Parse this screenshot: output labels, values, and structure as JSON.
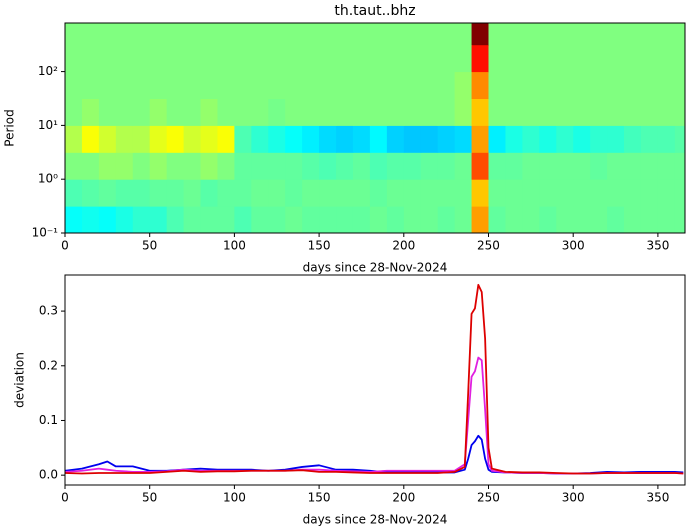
{
  "chart_data": [
    {
      "type": "heatmap",
      "title": "th.taut..bhz",
      "xlabel": "days since 28-Nov-2024",
      "ylabel": "Period",
      "yscale": "log",
      "colormap": "jet",
      "xlim": [
        0,
        366
      ],
      "xticks": [
        0,
        50,
        100,
        150,
        200,
        250,
        300,
        350
      ],
      "ylim": [
        0.1,
        800
      ],
      "yticks": [
        {
          "value": 0.1,
          "label": "10⁻¹"
        },
        {
          "value": 1,
          "label": "10⁰"
        },
        {
          "value": 10,
          "label": "10¹"
        },
        {
          "value": 100,
          "label": "10²"
        }
      ],
      "x_bins": [
        0,
        10,
        20,
        30,
        40,
        50,
        60,
        70,
        80,
        90,
        100,
        110,
        120,
        130,
        140,
        150,
        160,
        170,
        180,
        190,
        200,
        210,
        220,
        230,
        240,
        250,
        260,
        270,
        280,
        290,
        300,
        310,
        320,
        330,
        340,
        350,
        360,
        366
      ],
      "y_bins": [
        0.1,
        0.316,
        1,
        3.16,
        10,
        31.6,
        100,
        316,
        800
      ],
      "z": [
        [
          0.38,
          0.39,
          0.38,
          0.4,
          0.42,
          0.42,
          0.45,
          0.47,
          0.47,
          0.47,
          0.45,
          0.47,
          0.47,
          0.48,
          0.47,
          0.47,
          0.47,
          0.47,
          0.48,
          0.47,
          0.48,
          0.48,
          0.47,
          0.48,
          0.72,
          0.47,
          0.48,
          0.48,
          0.47,
          0.48,
          0.48,
          0.48,
          0.47,
          0.48,
          0.48,
          0.48,
          0.48
        ],
        [
          0.45,
          0.46,
          0.47,
          0.46,
          0.46,
          0.47,
          0.47,
          0.48,
          0.46,
          0.47,
          0.47,
          0.48,
          0.48,
          0.47,
          0.48,
          0.48,
          0.48,
          0.48,
          0.47,
          0.48,
          0.48,
          0.48,
          0.48,
          0.48,
          0.68,
          0.48,
          0.48,
          0.48,
          0.48,
          0.48,
          0.48,
          0.48,
          0.48,
          0.48,
          0.48,
          0.48,
          0.48
        ],
        [
          0.5,
          0.5,
          0.52,
          0.52,
          0.5,
          0.52,
          0.5,
          0.5,
          0.52,
          0.5,
          0.47,
          0.47,
          0.47,
          0.47,
          0.46,
          0.45,
          0.46,
          0.47,
          0.45,
          0.46,
          0.46,
          0.47,
          0.47,
          0.48,
          0.8,
          0.47,
          0.47,
          0.48,
          0.48,
          0.48,
          0.48,
          0.47,
          0.48,
          0.48,
          0.48,
          0.48,
          0.48
        ],
        [
          0.55,
          0.62,
          0.58,
          0.55,
          0.55,
          0.6,
          0.62,
          0.58,
          0.6,
          0.62,
          0.45,
          0.42,
          0.4,
          0.38,
          0.36,
          0.34,
          0.33,
          0.34,
          0.37,
          0.33,
          0.32,
          0.32,
          0.33,
          0.34,
          0.72,
          0.36,
          0.4,
          0.42,
          0.4,
          0.42,
          0.4,
          0.42,
          0.42,
          0.44,
          0.45,
          0.45,
          0.46
        ],
        [
          0.5,
          0.52,
          0.5,
          0.5,
          0.5,
          0.52,
          0.5,
          0.5,
          0.52,
          0.5,
          0.5,
          0.5,
          0.49,
          0.5,
          0.5,
          0.5,
          0.5,
          0.5,
          0.5,
          0.5,
          0.5,
          0.5,
          0.5,
          0.52,
          0.68,
          0.5,
          0.5,
          0.5,
          0.5,
          0.5,
          0.5,
          0.5,
          0.5,
          0.5,
          0.5,
          0.5,
          0.5
        ],
        [
          0.5,
          0.5,
          0.5,
          0.5,
          0.5,
          0.5,
          0.5,
          0.5,
          0.5,
          0.5,
          0.5,
          0.5,
          0.5,
          0.5,
          0.5,
          0.5,
          0.5,
          0.5,
          0.5,
          0.5,
          0.5,
          0.5,
          0.5,
          0.52,
          0.74,
          0.5,
          0.5,
          0.5,
          0.5,
          0.5,
          0.5,
          0.5,
          0.5,
          0.5,
          0.5,
          0.5,
          0.5
        ],
        [
          0.5,
          0.5,
          0.5,
          0.5,
          0.5,
          0.5,
          0.5,
          0.5,
          0.5,
          0.5,
          0.5,
          0.5,
          0.5,
          0.5,
          0.5,
          0.5,
          0.5,
          0.5,
          0.5,
          0.5,
          0.5,
          0.5,
          0.5,
          0.5,
          0.86,
          0.5,
          0.5,
          0.5,
          0.5,
          0.5,
          0.5,
          0.5,
          0.5,
          0.5,
          0.5,
          0.5,
          0.5
        ],
        [
          0.5,
          0.5,
          0.5,
          0.5,
          0.5,
          0.5,
          0.5,
          0.5,
          0.5,
          0.5,
          0.5,
          0.5,
          0.5,
          0.5,
          0.5,
          0.5,
          0.5,
          0.5,
          0.5,
          0.5,
          0.5,
          0.5,
          0.5,
          0.5,
          1.0,
          0.5,
          0.5,
          0.5,
          0.5,
          0.5,
          0.5,
          0.5,
          0.5,
          0.5,
          0.5,
          0.5,
          0.5
        ]
      ]
    },
    {
      "type": "line",
      "xlabel": "days since 28-Nov-2024",
      "ylabel": "deviation",
      "xlim": [
        0,
        366
      ],
      "xticks": [
        0,
        50,
        100,
        150,
        200,
        250,
        300,
        350
      ],
      "ylim": [
        -0.018,
        0.366
      ],
      "yticks": [
        {
          "value": 0,
          "label": "0.0"
        },
        0.1,
        0.2,
        0.3
      ],
      "x": [
        0,
        10,
        20,
        25,
        30,
        40,
        50,
        60,
        70,
        80,
        90,
        100,
        110,
        120,
        130,
        140,
        150,
        160,
        170,
        180,
        190,
        200,
        210,
        220,
        230,
        236,
        238,
        240,
        242,
        244,
        246,
        248,
        250,
        252,
        260,
        270,
        280,
        290,
        300,
        310,
        320,
        330,
        340,
        350,
        360,
        365
      ],
      "series": [
        {
          "color": "#0000ee",
          "values": [
            0.008,
            0.012,
            0.02,
            0.025,
            0.016,
            0.016,
            0.008,
            0.008,
            0.01,
            0.012,
            0.01,
            0.01,
            0.01,
            0.008,
            0.01,
            0.015,
            0.018,
            0.01,
            0.01,
            0.008,
            0.005,
            0.005,
            0.005,
            0.005,
            0.005,
            0.01,
            0.03,
            0.055,
            0.062,
            0.072,
            0.065,
            0.03,
            0.01,
            0.006,
            0.005,
            0.004,
            0.004,
            0.003,
            0.003,
            0.004,
            0.006,
            0.005,
            0.006,
            0.006,
            0.006,
            0.005
          ]
        },
        {
          "color": "#e020e0",
          "values": [
            0.006,
            0.008,
            0.012,
            0.01,
            0.008,
            0.006,
            0.006,
            0.007,
            0.01,
            0.008,
            0.008,
            0.008,
            0.008,
            0.008,
            0.008,
            0.01,
            0.01,
            0.008,
            0.007,
            0.006,
            0.008,
            0.008,
            0.008,
            0.008,
            0.008,
            0.02,
            0.1,
            0.18,
            0.19,
            0.215,
            0.21,
            0.12,
            0.02,
            0.008,
            0.005,
            0.004,
            0.004,
            0.003,
            0.003,
            0.003,
            0.004,
            0.004,
            0.004,
            0.004,
            0.004,
            0.003
          ]
        },
        {
          "color": "#dd0000",
          "values": [
            0.004,
            0.003,
            0.004,
            0.004,
            0.004,
            0.004,
            0.004,
            0.006,
            0.008,
            0.006,
            0.007,
            0.007,
            0.008,
            0.008,
            0.008,
            0.009,
            0.006,
            0.006,
            0.005,
            0.004,
            0.004,
            0.004,
            0.004,
            0.004,
            0.006,
            0.015,
            0.15,
            0.295,
            0.305,
            0.348,
            0.335,
            0.25,
            0.05,
            0.012,
            0.006,
            0.005,
            0.005,
            0.004,
            0.003,
            0.003,
            0.004,
            0.004,
            0.004,
            0.004,
            0.004,
            0.003
          ]
        }
      ]
    }
  ]
}
